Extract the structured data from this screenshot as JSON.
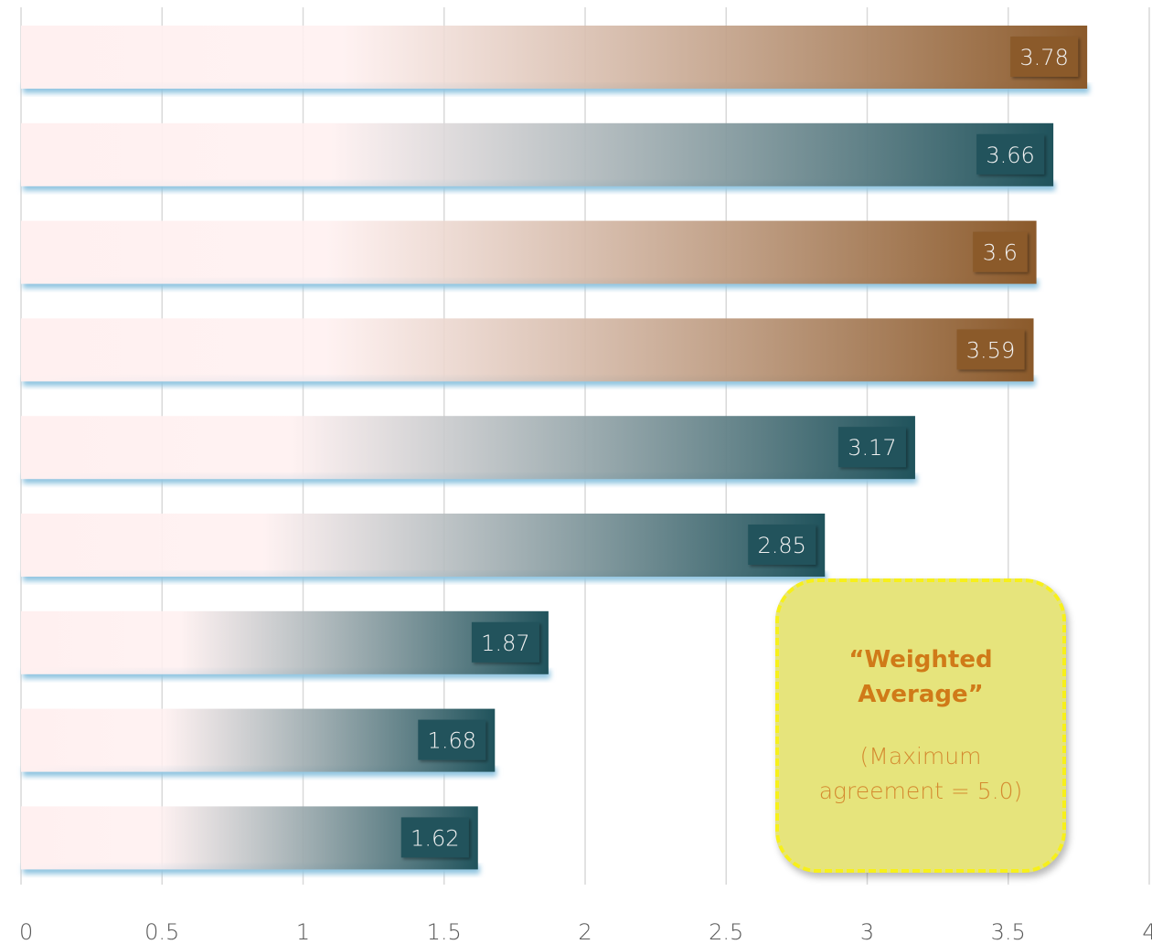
{
  "chart_data": {
    "type": "bar",
    "orientation": "horizontal",
    "values": [
      3.78,
      3.66,
      3.6,
      3.59,
      3.17,
      2.85,
      1.87,
      1.68,
      1.62
    ],
    "data_labels": [
      "3.78",
      "3.66",
      "3.6",
      "3.59",
      "3.17",
      "2.85",
      "1.87",
      "1.68",
      "1.62"
    ],
    "bar_end_colors": [
      "#8b5a2b",
      "#20535c",
      "#8b5a2b",
      "#8b5a2b",
      "#20535c",
      "#20535c",
      "#20535c",
      "#20535c",
      "#20535c"
    ],
    "xlim": [
      0,
      4
    ],
    "x_ticks": [
      "0",
      "0.5",
      "1",
      "1.5",
      "2",
      "2.5",
      "3",
      "3.5",
      "4"
    ],
    "grid": true,
    "title": "",
    "xlabel": "",
    "ylabel": ""
  },
  "annotation": {
    "title": "“Weighted Average”",
    "subtitle": "(Maximum agreement = 5.0)"
  },
  "colors": {
    "bar_start": "#fff0f0",
    "gridline": "#d9d9d9",
    "bar_shadow": "#8fc4e0",
    "annotation_fill": "#e6e47c",
    "annotation_border": "#f7f01a",
    "annotation_text": "#d07a18"
  }
}
